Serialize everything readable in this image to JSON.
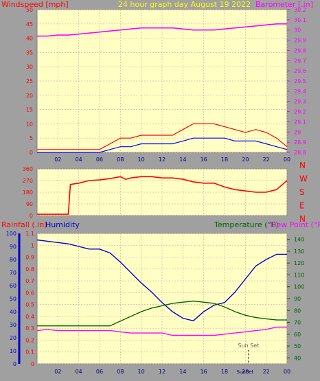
{
  "panel_title": "24 hour graph day   August 19 2022",
  "labels": {
    "windspeed": "Windspeed [mph]",
    "barometer": "Barometer [.in]",
    "rainfall": "Rainfall (.in)",
    "humidity": "Humidity",
    "temperature": "Temperature (°F)",
    "dewpoint": "Dew Point (°F)",
    "sunset": "Sun Set",
    "compass": [
      "N",
      "W",
      "S",
      "E",
      "N"
    ]
  },
  "colors": {
    "frame": "#a0a0a0",
    "plot_bg": "#ffffc4",
    "grid": "#e0b0a8",
    "wind": "#ff0000",
    "gust": "#0000ff",
    "calm": "#008000",
    "barometer": "#ff00ff",
    "humidity": "#0000cc",
    "temperature": "#006400",
    "dewpoint": "#ff00ff",
    "rain_axis": "#ff0000",
    "humidity_axis": "#0000cc",
    "temp_axis": "#006400"
  },
  "chart_data": [
    {
      "type": "line",
      "title": "24 hour graph day   August 19 2022",
      "x_ticks": [
        "02",
        "04",
        "06",
        "08",
        "10",
        "12",
        "14",
        "16",
        "18",
        "20",
        "22",
        "00"
      ],
      "xlim": [
        0,
        24
      ],
      "grid": true,
      "left_axis": {
        "label": "Windspeed [mph]",
        "ticks": [
          "0",
          "5",
          "10",
          "15",
          "20",
          "25",
          "30",
          "35",
          "40",
          "45",
          "50"
        ],
        "range": [
          0,
          50
        ]
      },
      "right_axis": {
        "label": "Barometer [.in]",
        "ticks": [
          "28.8",
          "28.9",
          "29",
          "29.1",
          "29.2",
          "29.3",
          "29.4",
          "29.5",
          "29.6",
          "29.7",
          "29.8",
          "29.9",
          "30",
          "30.1",
          "30.2"
        ],
        "range": [
          28.8,
          30.2
        ]
      },
      "series": [
        {
          "name": "Barometer",
          "axis": "right",
          "x": [
            0,
            1,
            2,
            3,
            4,
            5,
            6,
            7,
            8,
            9,
            10,
            11,
            12,
            13,
            14,
            15,
            16,
            17,
            18,
            19,
            20,
            21,
            22,
            23,
            24
          ],
          "values": [
            29.94,
            29.94,
            29.95,
            29.95,
            29.96,
            29.97,
            29.98,
            29.99,
            30.0,
            30.01,
            30.02,
            30.02,
            30.02,
            30.02,
            30.01,
            30.0,
            30.0,
            30.0,
            30.01,
            30.02,
            30.03,
            30.04,
            30.05,
            30.06,
            30.06
          ]
        },
        {
          "name": "Wind speed",
          "axis": "left",
          "x": [
            0,
            2,
            4,
            6,
            7,
            8,
            9,
            10,
            11,
            12,
            13,
            14,
            15,
            16,
            17,
            18,
            19,
            20,
            21,
            22,
            23,
            24
          ],
          "values": [
            0,
            0,
            0,
            0,
            1,
            2,
            2,
            3,
            3,
            3,
            3,
            4,
            5,
            5,
            5,
            5,
            4,
            4,
            4,
            3,
            2,
            1
          ]
        },
        {
          "name": "Wind gust",
          "axis": "left",
          "x": [
            0,
            2,
            4,
            6,
            7,
            8,
            9,
            10,
            11,
            12,
            13,
            14,
            15,
            16,
            17,
            18,
            19,
            20,
            21,
            22,
            23,
            24
          ],
          "values": [
            1,
            1,
            1,
            1,
            3,
            5,
            5,
            6,
            6,
            6,
            6,
            8,
            10,
            10,
            10,
            9,
            8,
            7,
            8,
            7,
            5,
            2
          ]
        }
      ]
    },
    {
      "type": "line",
      "x_ticks": [],
      "xlim": [
        0,
        24
      ],
      "grid": true,
      "left_axis": {
        "label": "",
        "ticks": [
          "0",
          "90",
          "180",
          "270",
          "360"
        ],
        "range": [
          0,
          360
        ]
      },
      "right_axis": {
        "label": "",
        "ticks": [
          "N",
          "W",
          "S",
          "E",
          "N"
        ]
      },
      "series": [
        {
          "name": "Wind direction",
          "x": [
            0,
            1,
            2,
            3,
            3.2,
            4,
            5,
            6,
            7,
            8,
            8.5,
            9,
            10,
            11,
            12,
            13,
            14,
            15,
            16,
            17,
            18,
            19,
            20,
            21,
            22,
            23,
            24
          ],
          "values": [
            10,
            10,
            10,
            10,
            240,
            250,
            270,
            275,
            285,
            300,
            280,
            290,
            300,
            300,
            290,
            290,
            280,
            260,
            250,
            250,
            220,
            200,
            190,
            180,
            180,
            200,
            270
          ]
        }
      ]
    },
    {
      "type": "line",
      "x_ticks": [
        "02",
        "04",
        "06",
        "08",
        "10",
        "12",
        "14",
        "16",
        "18",
        "20",
        "22",
        "00"
      ],
      "xlim": [
        0,
        24
      ],
      "grid": true,
      "left_axis": {
        "label": "Rainfall (.in)",
        "ticks": [
          "0",
          "0.1",
          "0.2",
          "0.3",
          "0.4",
          "0.5",
          "0.6",
          "0.7",
          "0.8",
          "0.9",
          "1",
          "1.1"
        ],
        "range": [
          0,
          1.1
        ]
      },
      "left_axis2": {
        "label": "Humidity",
        "ticks": [
          "0",
          "10",
          "20",
          "30",
          "40",
          "50",
          "60",
          "70",
          "80",
          "90",
          "100"
        ],
        "range": [
          0,
          100
        ]
      },
      "right_axis": {
        "label": "Temperature (°F)  Dew Point (°F)",
        "ticks": [
          "40",
          "50",
          "60",
          "70",
          "80",
          "90",
          "100",
          "110",
          "120",
          "130",
          "140"
        ],
        "range": [
          35,
          145
        ]
      },
      "sunset_hour": 20.3,
      "sunset_label": "Sun Set",
      "bottom_labels": [
        "Sun",
        "Set"
      ],
      "series": [
        {
          "name": "Humidity",
          "axis": "left2",
          "x": [
            0,
            1,
            2,
            3,
            4,
            5,
            6,
            7,
            8,
            9,
            10,
            11,
            12,
            13,
            14,
            15,
            16,
            17,
            18,
            19,
            20,
            21,
            22,
            23,
            24
          ],
          "values": [
            95,
            94,
            93,
            92,
            90,
            88,
            88,
            85,
            78,
            70,
            62,
            55,
            47,
            40,
            35,
            33,
            40,
            45,
            47,
            55,
            65,
            75,
            80,
            84,
            84
          ]
        },
        {
          "name": "Temperature",
          "axis": "right",
          "x": [
            0,
            1,
            2,
            3,
            4,
            5,
            6,
            7,
            8,
            9,
            10,
            11,
            12,
            13,
            14,
            15,
            16,
            17,
            18,
            19,
            20,
            21,
            22,
            23,
            24
          ],
          "values": [
            67,
            67,
            67,
            67,
            67,
            67,
            67,
            67,
            71,
            75,
            79,
            82,
            84,
            86,
            87,
            88,
            87,
            86,
            83,
            79,
            76,
            74,
            73,
            72,
            72
          ]
        },
        {
          "name": "Dew Point",
          "axis": "right",
          "x": [
            0,
            1,
            2,
            3,
            4,
            5,
            6,
            7,
            8,
            9,
            10,
            11,
            12,
            13,
            14,
            15,
            16,
            17,
            18,
            19,
            20,
            21,
            22,
            23,
            24
          ],
          "values": [
            63,
            64,
            63,
            63,
            63,
            63,
            63,
            63,
            62,
            61,
            61,
            61,
            61,
            59,
            59,
            59,
            59,
            59,
            60,
            61,
            62,
            63,
            64,
            66,
            66
          ]
        }
      ]
    }
  ]
}
